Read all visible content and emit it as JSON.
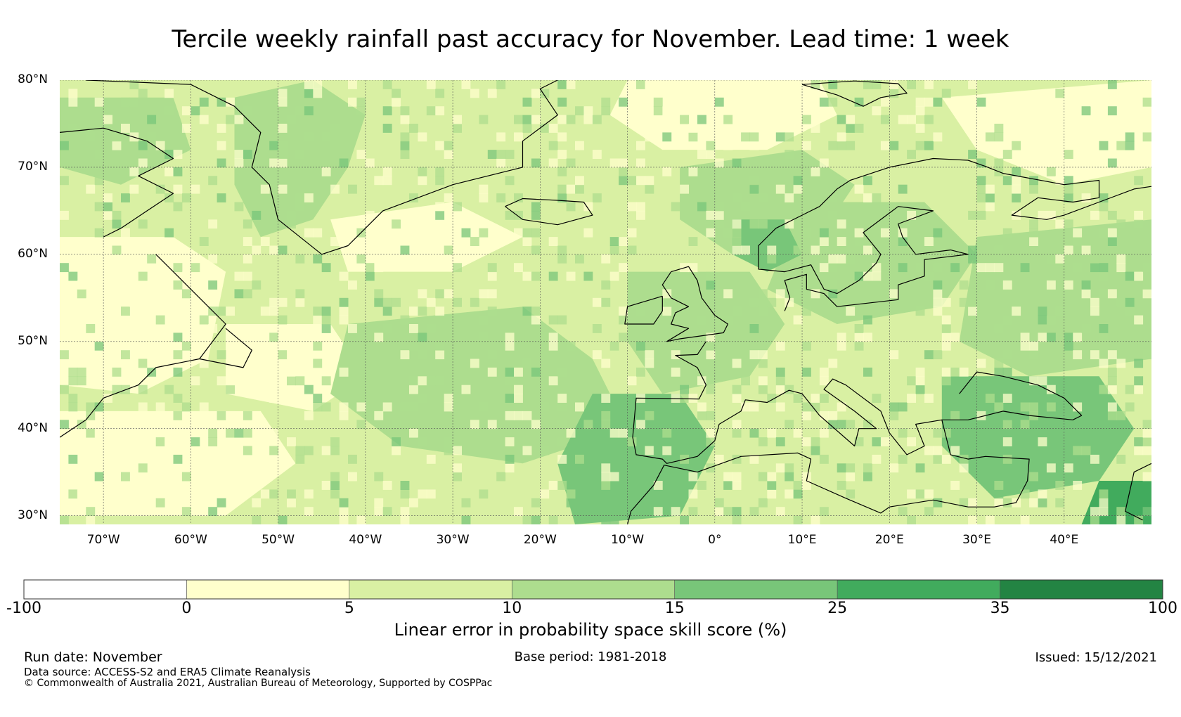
{
  "title": "Tercile weekly rainfall past accuracy for November. Lead time: 1 week",
  "map": {
    "extent": {
      "lon_min": -75,
      "lon_max": 50,
      "lat_min": 29,
      "lat_max": 80
    },
    "lat_ticks": [
      {
        "value": 80,
        "label": "80°N"
      },
      {
        "value": 70,
        "label": "70°N"
      },
      {
        "value": 60,
        "label": "60°N"
      },
      {
        "value": 50,
        "label": "50°N"
      },
      {
        "value": 40,
        "label": "40°N"
      },
      {
        "value": 30,
        "label": "30°N"
      }
    ],
    "lon_ticks": [
      {
        "value": -70,
        "label": "70°W"
      },
      {
        "value": -60,
        "label": "60°W"
      },
      {
        "value": -50,
        "label": "50°W"
      },
      {
        "value": -40,
        "label": "40°W"
      },
      {
        "value": -30,
        "label": "30°W"
      },
      {
        "value": -20,
        "label": "20°W"
      },
      {
        "value": -10,
        "label": "10°W"
      },
      {
        "value": 0,
        "label": "0°"
      },
      {
        "value": 10,
        "label": "10°E"
      },
      {
        "value": 20,
        "label": "20°E"
      },
      {
        "value": 30,
        "label": "30°E"
      },
      {
        "value": 40,
        "label": "40°E"
      }
    ],
    "background_class": 2,
    "regions": [
      {
        "name": "labrador-sea-band",
        "class": 1,
        "poly": [
          [
            -75,
            62
          ],
          [
            -62,
            62
          ],
          [
            -56,
            58
          ],
          [
            -58,
            48
          ],
          [
            -66,
            44
          ],
          [
            -75,
            45
          ]
        ]
      },
      {
        "name": "newfoundland-basin",
        "class": 1,
        "poly": [
          [
            -56,
            52
          ],
          [
            -44,
            52
          ],
          [
            -40,
            46
          ],
          [
            -46,
            42
          ],
          [
            -56,
            44
          ]
        ]
      },
      {
        "name": "west-atlantic-subtropics",
        "class": 1,
        "poly": [
          [
            -75,
            42
          ],
          [
            -52,
            42
          ],
          [
            -48,
            36
          ],
          [
            -56,
            30
          ],
          [
            -75,
            30
          ]
        ]
      },
      {
        "name": "irminger-sea",
        "class": 1,
        "poly": [
          [
            -44,
            64
          ],
          [
            -30,
            66
          ],
          [
            -22,
            62
          ],
          [
            -30,
            58
          ],
          [
            -42,
            58
          ]
        ]
      },
      {
        "name": "nordic-seas",
        "class": 1,
        "poly": [
          [
            -10,
            80
          ],
          [
            12,
            80
          ],
          [
            14,
            76
          ],
          [
            6,
            72
          ],
          [
            -6,
            72
          ],
          [
            -12,
            76
          ]
        ]
      },
      {
        "name": "barents-sea",
        "class": 1,
        "poly": [
          [
            26,
            78
          ],
          [
            50,
            80
          ],
          [
            50,
            70
          ],
          [
            40,
            68
          ],
          [
            30,
            72
          ]
        ]
      },
      {
        "name": "east-greenland-coast",
        "class": 3,
        "poly": [
          [
            -55,
            78
          ],
          [
            -46,
            80
          ],
          [
            -40,
            76
          ],
          [
            -42,
            70
          ],
          [
            -46,
            64
          ],
          [
            -52,
            62
          ],
          [
            -55,
            68
          ]
        ]
      },
      {
        "name": "baffin-bay",
        "class": 3,
        "poly": [
          [
            -75,
            78
          ],
          [
            -62,
            78
          ],
          [
            -60,
            72
          ],
          [
            -68,
            68
          ],
          [
            -75,
            70
          ]
        ]
      },
      {
        "name": "mid-atlantic-band",
        "class": 3,
        "poly": [
          [
            -42,
            52
          ],
          [
            -22,
            54
          ],
          [
            -14,
            48
          ],
          [
            -10,
            40
          ],
          [
            -22,
            36
          ],
          [
            -36,
            38
          ],
          [
            -44,
            44
          ]
        ]
      },
      {
        "name": "norwegian-sea",
        "class": 3,
        "poly": [
          [
            -4,
            70
          ],
          [
            10,
            72
          ],
          [
            16,
            68
          ],
          [
            12,
            62
          ],
          [
            2,
            60
          ],
          [
            -4,
            64
          ]
        ]
      },
      {
        "name": "scandinavia-baltic",
        "class": 3,
        "poly": [
          [
            10,
            66
          ],
          [
            24,
            66
          ],
          [
            30,
            60
          ],
          [
            26,
            54
          ],
          [
            14,
            52
          ],
          [
            6,
            56
          ]
        ]
      },
      {
        "name": "eastern-europe",
        "class": 3,
        "poly": [
          [
            30,
            62
          ],
          [
            50,
            64
          ],
          [
            50,
            48
          ],
          [
            36,
            46
          ],
          [
            28,
            50
          ]
        ]
      },
      {
        "name": "western-europe",
        "class": 3,
        "poly": [
          [
            -10,
            58
          ],
          [
            4,
            58
          ],
          [
            8,
            52
          ],
          [
            4,
            46
          ],
          [
            -6,
            44
          ],
          [
            -10,
            50
          ]
        ]
      },
      {
        "name": "iberia-west-africa",
        "class": 4,
        "poly": [
          [
            -14,
            44
          ],
          [
            -4,
            44
          ],
          [
            0,
            38
          ],
          [
            -4,
            30
          ],
          [
            -16,
            29
          ],
          [
            -18,
            36
          ]
        ]
      },
      {
        "name": "black-sea-turkey",
        "class": 4,
        "poly": [
          [
            26,
            46
          ],
          [
            44,
            46
          ],
          [
            48,
            40
          ],
          [
            44,
            34
          ],
          [
            32,
            32
          ],
          [
            26,
            38
          ]
        ]
      },
      {
        "name": "southern-norway",
        "class": 4,
        "poly": [
          [
            2,
            64
          ],
          [
            8,
            64
          ],
          [
            10,
            60
          ],
          [
            6,
            58
          ],
          [
            2,
            60
          ]
        ]
      },
      {
        "name": "middle-east-corner",
        "class": 5,
        "poly": [
          [
            44,
            34
          ],
          [
            50,
            34
          ],
          [
            50,
            29
          ],
          [
            42,
            29
          ]
        ]
      }
    ],
    "coastlines": [
      [
        [
          -75,
          74
        ],
        [
          -70,
          74.5
        ],
        [
          -65,
          73
        ],
        [
          -62,
          71
        ],
        [
          -66,
          69
        ],
        [
          -62,
          67
        ],
        [
          -65,
          65
        ],
        [
          -68,
          63
        ],
        [
          -70,
          62
        ]
      ],
      [
        [
          -64,
          60
        ],
        [
          -60,
          56
        ],
        [
          -58,
          54
        ],
        [
          -56,
          52
        ],
        [
          -59,
          48
        ],
        [
          -64,
          47
        ],
        [
          -66,
          45
        ],
        [
          -70,
          43.5
        ],
        [
          -72,
          41
        ],
        [
          -75,
          39
        ]
      ],
      [
        [
          -59,
          48
        ],
        [
          -54,
          47
        ],
        [
          -53,
          49
        ],
        [
          -56,
          51.5
        ]
      ],
      [
        [
          -72,
          80
        ],
        [
          -60,
          79.5
        ],
        [
          -55,
          77
        ],
        [
          -52,
          74
        ],
        [
          -53,
          70
        ],
        [
          -51,
          68
        ],
        [
          -50,
          64
        ],
        [
          -45,
          60
        ],
        [
          -42,
          61
        ],
        [
          -38,
          65
        ],
        [
          -30,
          68
        ],
        [
          -22,
          70
        ],
        [
          -22,
          73
        ],
        [
          -18,
          76
        ],
        [
          -20,
          79
        ],
        [
          -18,
          80
        ]
      ],
      [
        [
          -24,
          65.5
        ],
        [
          -22,
          64
        ],
        [
          -18,
          63.4
        ],
        [
          -14,
          64.5
        ],
        [
          -15,
          66
        ],
        [
          -18,
          66.2
        ],
        [
          -22,
          66.4
        ],
        [
          -24,
          65.5
        ]
      ],
      [
        [
          -5,
          58
        ],
        [
          -3,
          58.6
        ],
        [
          -2,
          57
        ],
        [
          -1.5,
          55
        ],
        [
          0,
          53
        ],
        [
          1.5,
          52
        ],
        [
          1,
          51
        ],
        [
          -4,
          50.3
        ],
        [
          -5.5,
          50
        ],
        [
          -3,
          51.5
        ],
        [
          -5,
          52
        ],
        [
          -4.5,
          53.3
        ],
        [
          -3,
          54
        ],
        [
          -5,
          55
        ],
        [
          -6,
          56.5
        ],
        [
          -5,
          58
        ]
      ],
      [
        [
          -6,
          55.2
        ],
        [
          -10,
          54
        ],
        [
          -10.3,
          52
        ],
        [
          -7,
          52
        ],
        [
          -6,
          53.5
        ],
        [
          -6,
          55.2
        ]
      ],
      [
        [
          -1,
          50
        ],
        [
          -2,
          48.5
        ],
        [
          -4.5,
          48.4
        ],
        [
          -2,
          47
        ],
        [
          -1,
          45
        ],
        [
          -1.8,
          43.4
        ],
        [
          -9,
          43.5
        ],
        [
          -9.4,
          39
        ],
        [
          -9,
          37
        ],
        [
          -6,
          36.5
        ],
        [
          -5.5,
          36
        ],
        [
          -2,
          36.8
        ],
        [
          0,
          38.6
        ],
        [
          0.5,
          40.5
        ],
        [
          3,
          42
        ],
        [
          3.5,
          43.3
        ],
        [
          6,
          43
        ],
        [
          8.5,
          44.4
        ],
        [
          10,
          44
        ],
        [
          12,
          41.5
        ],
        [
          16,
          38
        ],
        [
          16.5,
          40
        ],
        [
          18.5,
          40
        ],
        [
          16,
          42
        ],
        [
          12.5,
          44.5
        ],
        [
          13.5,
          45.7
        ],
        [
          15,
          45
        ],
        [
          19,
          42
        ],
        [
          20,
          39.5
        ],
        [
          22,
          37
        ],
        [
          24,
          38
        ],
        [
          23,
          40.5
        ],
        [
          26,
          41
        ],
        [
          29,
          41
        ],
        [
          33,
          42
        ],
        [
          36,
          41.5
        ],
        [
          41,
          41
        ],
        [
          42,
          41.5
        ],
        [
          40,
          43.5
        ],
        [
          37,
          45
        ],
        [
          33,
          46
        ],
        [
          30,
          46.5
        ],
        [
          28,
          44
        ]
      ],
      [
        [
          26,
          41
        ],
        [
          27,
          37
        ],
        [
          29,
          36.5
        ],
        [
          31,
          36.8
        ],
        [
          36,
          36.5
        ],
        [
          35.8,
          34
        ],
        [
          34.5,
          31.5
        ],
        [
          32,
          31
        ],
        [
          29,
          31
        ],
        [
          25,
          31.8
        ],
        [
          20,
          31
        ],
        [
          19,
          30.3
        ],
        [
          15,
          32
        ],
        [
          10.5,
          34
        ],
        [
          11,
          36.5
        ],
        [
          9.5,
          37.2
        ],
        [
          3,
          36.8
        ],
        [
          -2,
          35
        ],
        [
          -5.8,
          35.8
        ],
        [
          -7,
          33.5
        ],
        [
          -9.6,
          30.5
        ],
        [
          -10,
          29
        ]
      ],
      [
        [
          8,
          53.5
        ],
        [
          8.6,
          55
        ],
        [
          8,
          57
        ],
        [
          10.5,
          57.7
        ],
        [
          10.5,
          56
        ],
        [
          12.5,
          55.5
        ],
        [
          14,
          54
        ],
        [
          21,
          54.8
        ],
        [
          21,
          56.5
        ],
        [
          24,
          57.5
        ],
        [
          24,
          59.4
        ],
        [
          29,
          60
        ],
        [
          27,
          60.5
        ],
        [
          23,
          60
        ],
        [
          21.5,
          62
        ],
        [
          21,
          63.5
        ],
        [
          25,
          65
        ],
        [
          21,
          65.5
        ],
        [
          17,
          62.5
        ],
        [
          19,
          60
        ],
        [
          18.5,
          59
        ],
        [
          16.5,
          57
        ],
        [
          14,
          55.5
        ],
        [
          12.5,
          56
        ],
        [
          11,
          58.8
        ],
        [
          8,
          58
        ],
        [
          5,
          58.3
        ],
        [
          5,
          61
        ],
        [
          7,
          63
        ],
        [
          12,
          65.5
        ],
        [
          14,
          67.5
        ],
        [
          15.5,
          68.5
        ],
        [
          20,
          70
        ],
        [
          25,
          71
        ],
        [
          29,
          70.8
        ],
        [
          31,
          70.1
        ],
        [
          33,
          69.3
        ],
        [
          40,
          68
        ],
        [
          44,
          68.5
        ],
        [
          44,
          66.5
        ],
        [
          41,
          66
        ],
        [
          37,
          66.5
        ],
        [
          34,
          64.5
        ],
        [
          38,
          64
        ],
        [
          40,
          64.5
        ],
        [
          44,
          66
        ],
        [
          48,
          67.5
        ],
        [
          50,
          67.8
        ]
      ],
      [
        [
          10,
          79.5
        ],
        [
          14,
          78.3
        ],
        [
          17,
          77
        ],
        [
          19,
          78
        ],
        [
          22,
          78.5
        ],
        [
          21,
          79.6
        ],
        [
          16,
          79.9
        ],
        [
          10,
          79.5
        ]
      ],
      [
        [
          50,
          36
        ],
        [
          48,
          35
        ],
        [
          47,
          30.5
        ],
        [
          49,
          29.5
        ]
      ]
    ]
  },
  "colorbar": {
    "boundaries": [
      -100,
      0,
      5,
      10,
      15,
      25,
      35,
      100
    ],
    "colors": [
      "#ffffff",
      "#ffffcc",
      "#d9f0a3",
      "#addd8e",
      "#78c679",
      "#41ab5d",
      "#238443"
    ],
    "tick_labels": [
      "-100",
      "0",
      "5",
      "10",
      "15",
      "25",
      "35",
      "100"
    ],
    "label": "Linear error in probability space skill score (%)"
  },
  "footer": {
    "run_date": "Run date: November",
    "base_period": "Base period: 1981-2018",
    "issued": "Issued: 15/12/2021",
    "data_source": "Data source: ACCESS-S2 and ERA5 Climate Reanalysis",
    "copyright": "© Commonwealth of Australia 2021, Australian Bureau of Meteorology, Supported by COSPPac"
  }
}
